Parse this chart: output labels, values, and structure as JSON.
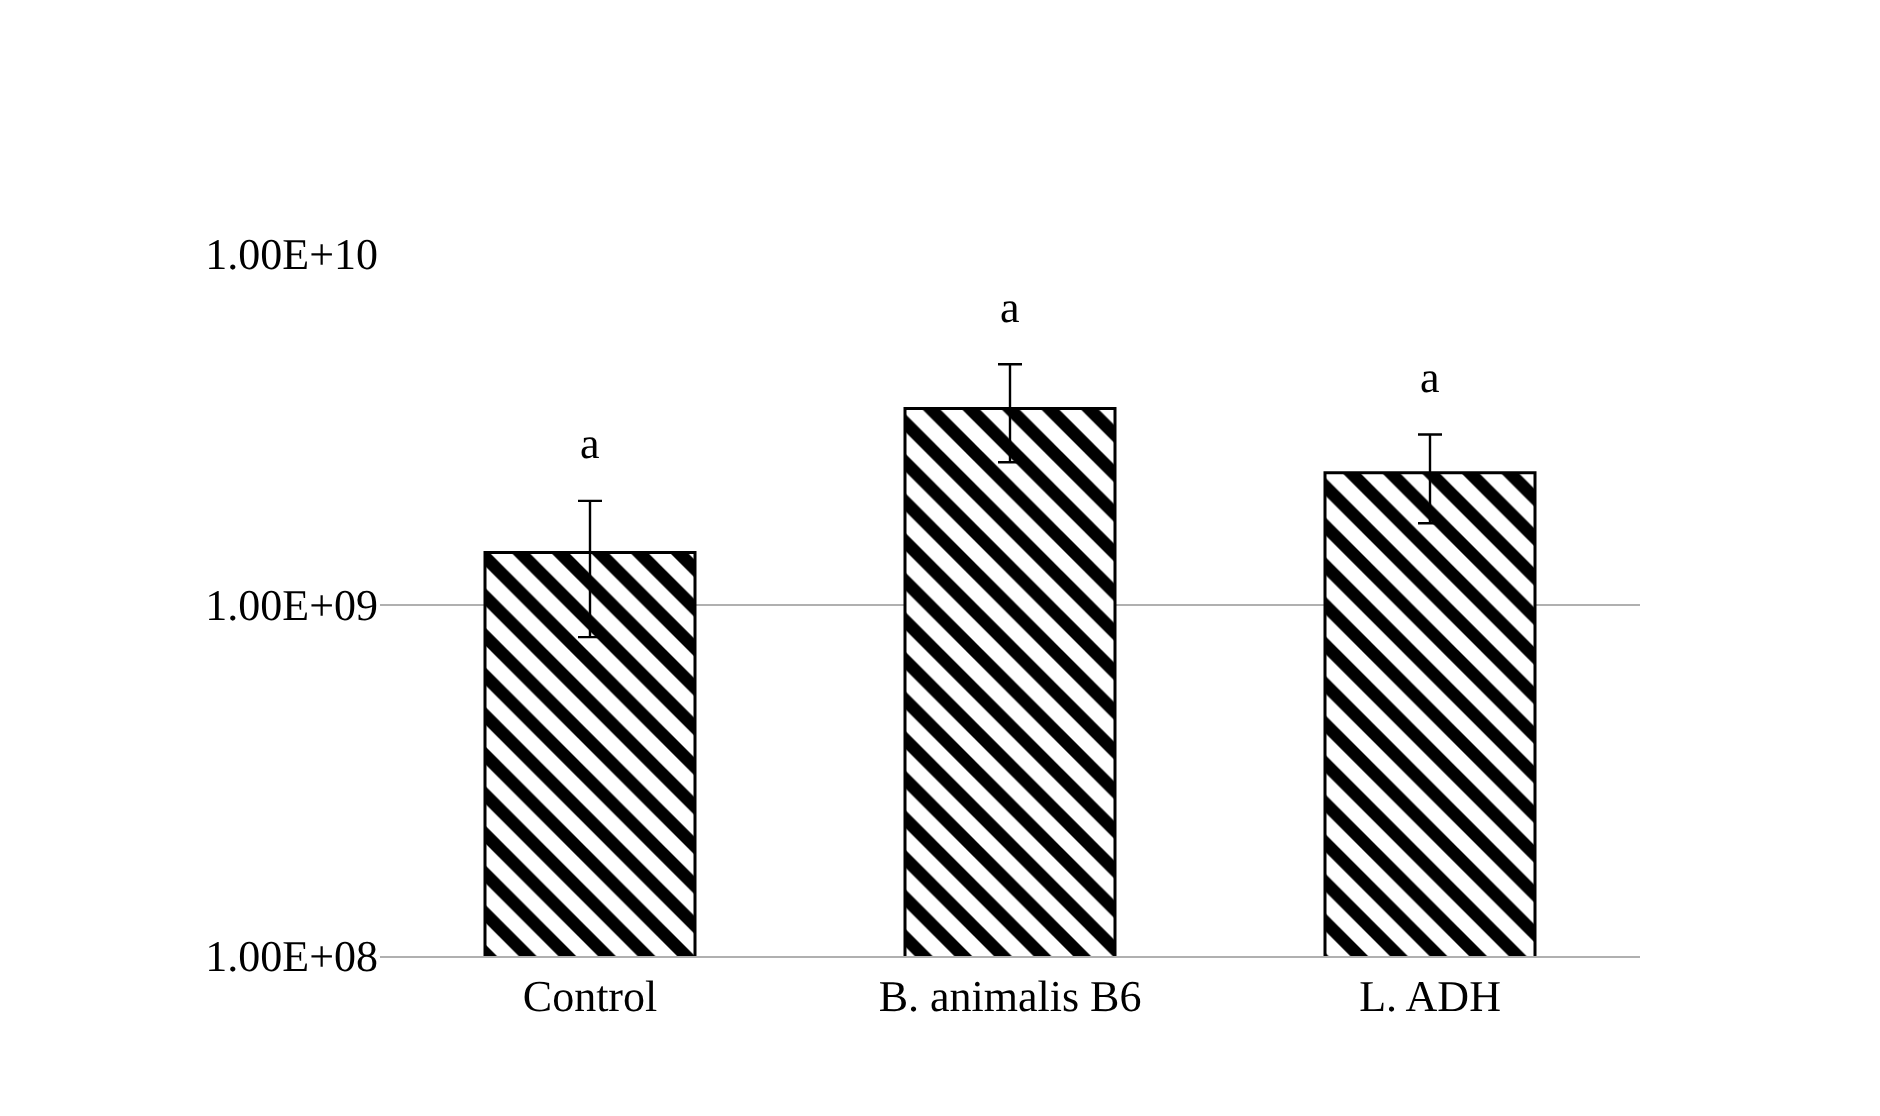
{
  "chart_data": {
    "type": "bar",
    "categories": [
      "Control",
      "B. animalis B6",
      "L. ADH"
    ],
    "values": [
      1410000000.0,
      3630000000.0,
      2380000000.0
    ],
    "errors": [
      [
        810000000.0,
        1980000000.0
      ],
      [
        2550000000.0,
        4850000000.0
      ],
      [
        1710000000.0,
        3060000000.0
      ]
    ],
    "color": "#000000",
    "log": "y",
    "ylim": [
      100000000.0,
      10000000000.0
    ],
    "yticks": [
      {
        "value": 100000000.0,
        "label": "1.00E+08"
      },
      {
        "value": 1000000000.0,
        "label": "1.00E+09"
      },
      {
        "value": 10000000000.0,
        "label": "1.00E+10"
      }
    ],
    "grid": "y",
    "annotations": [
      "a",
      "a",
      "a"
    ]
  }
}
